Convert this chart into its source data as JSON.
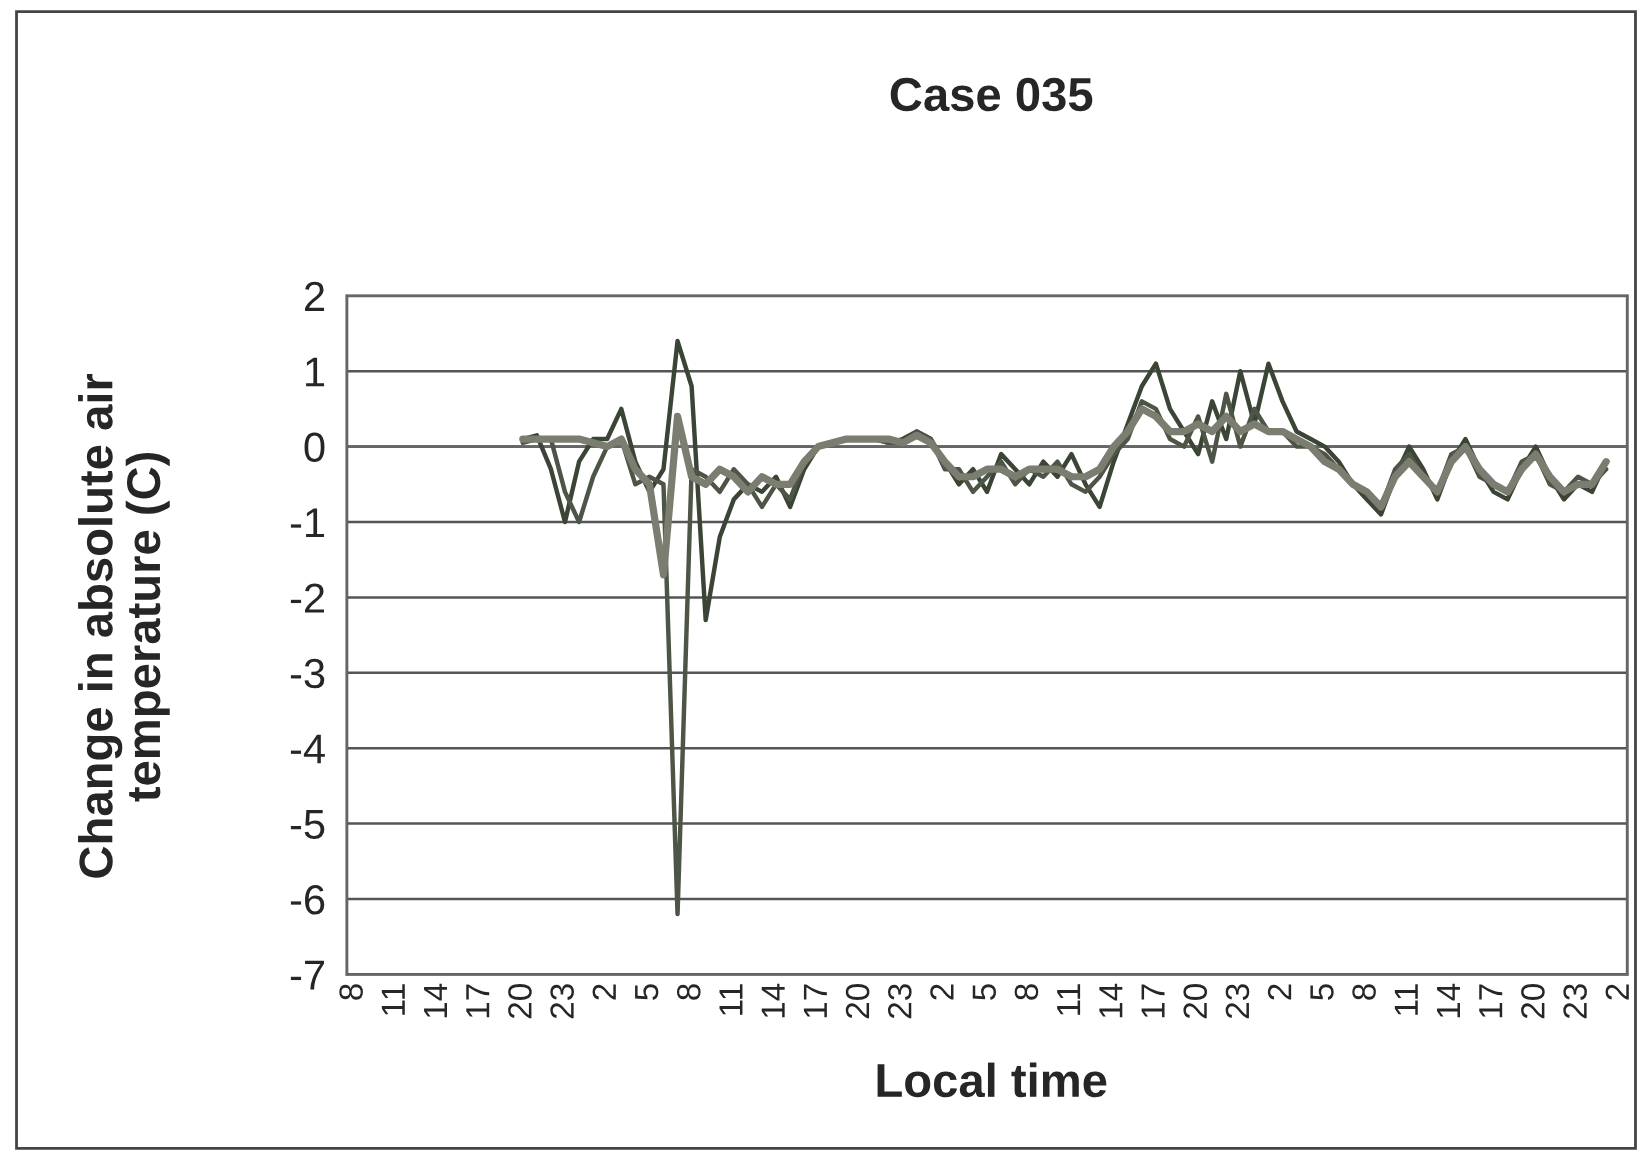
{
  "chart_data": {
    "type": "line",
    "title": "Case 035",
    "xlabel": "Local time",
    "ylabel": "Change in absolute air\ntemperature (C)",
    "categories": [
      "8",
      null,
      null,
      "11",
      null,
      null,
      "14",
      null,
      null,
      "17",
      null,
      null,
      "20",
      null,
      null,
      "23",
      null,
      null,
      "2",
      null,
      null,
      "5",
      null,
      null,
      "8",
      null,
      null,
      "11",
      null,
      null,
      "14",
      null,
      null,
      "17",
      null,
      null,
      "20",
      null,
      null,
      "23",
      null,
      null,
      "2",
      null,
      null,
      "5",
      null,
      null,
      "8",
      null,
      null,
      "11",
      null,
      null,
      "14",
      null,
      null,
      "17",
      null,
      null,
      "20",
      null,
      null,
      "23",
      null,
      null,
      "2",
      null,
      null,
      "5",
      null,
      null,
      "8",
      null,
      null,
      "11",
      null,
      null,
      "14",
      null,
      null,
      "17",
      null,
      null,
      "20",
      null,
      null,
      "23",
      null,
      null,
      "2"
    ],
    "series": [
      {
        "color": "#3a4536",
        "values": [
          null,
          null,
          null,
          null,
          null,
          null,
          null,
          null,
          null,
          null,
          null,
          null,
          0.1,
          0.15,
          -0.3,
          -1.0,
          -0.2,
          0.1,
          0.1,
          0.5,
          -0.2,
          -0.6,
          -0.3,
          1.4,
          0.8,
          -2.3,
          -1.2,
          -0.7,
          -0.5,
          -0.6,
          -0.4,
          -0.8,
          -0.3,
          0.0,
          0.05,
          0.1,
          0.1,
          0.1,
          0.05,
          0.1,
          0.2,
          0.1,
          -0.2,
          -0.5,
          -0.3,
          -0.6,
          -0.1,
          -0.3,
          -0.5,
          -0.2,
          -0.4,
          -0.1,
          -0.5,
          -0.8,
          -0.2,
          0.3,
          0.8,
          1.1,
          0.5,
          0.2,
          -0.1,
          0.6,
          0.1,
          1.0,
          0.3,
          1.1,
          0.6,
          0.2,
          0.1,
          0.0,
          -0.2,
          -0.5,
          -0.7,
          -0.9,
          -0.4,
          0.0,
          -0.3,
          -0.7,
          -0.2,
          0.1,
          -0.3,
          -0.6,
          -0.7,
          -0.3,
          0.0,
          -0.4,
          -0.7,
          -0.5,
          -0.6,
          -0.2,
          null
        ]
      },
      {
        "color": "#4d5547",
        "values": [
          null,
          null,
          null,
          null,
          null,
          null,
          null,
          null,
          null,
          null,
          null,
          null,
          0.05,
          0.1,
          0.1,
          -0.6,
          -1.0,
          -0.4,
          0.0,
          0.1,
          -0.5,
          -0.4,
          -0.5,
          -6.2,
          -0.3,
          -0.4,
          -0.6,
          -0.3,
          -0.5,
          -0.8,
          -0.5,
          -0.7,
          -0.2,
          0.0,
          0.05,
          0.1,
          0.1,
          0.1,
          0.05,
          0.05,
          0.2,
          0.1,
          -0.3,
          -0.3,
          -0.6,
          -0.4,
          -0.2,
          -0.5,
          -0.3,
          -0.4,
          -0.2,
          -0.5,
          -0.6,
          -0.4,
          -0.1,
          0.1,
          0.6,
          0.5,
          0.1,
          0.0,
          0.4,
          -0.2,
          0.7,
          0.0,
          0.5,
          0.2,
          0.2,
          0.0,
          0.0,
          -0.1,
          -0.3,
          -0.5,
          -0.6,
          -0.8,
          -0.3,
          -0.1,
          -0.4,
          -0.6,
          -0.1,
          0.0,
          -0.4,
          -0.5,
          -0.6,
          -0.2,
          -0.1,
          -0.5,
          -0.6,
          -0.4,
          -0.5,
          -0.3,
          null
        ]
      },
      {
        "color": "#7a7d70",
        "values": [
          null,
          null,
          null,
          null,
          null,
          null,
          null,
          null,
          null,
          null,
          null,
          null,
          0.1,
          0.1,
          0.1,
          0.1,
          0.1,
          0.05,
          0.0,
          0.1,
          -0.3,
          -0.5,
          -1.7,
          0.4,
          -0.4,
          -0.5,
          -0.3,
          -0.4,
          -0.6,
          -0.4,
          -0.5,
          -0.5,
          -0.2,
          0.0,
          0.05,
          0.1,
          0.1,
          0.1,
          0.1,
          0.05,
          0.15,
          0.05,
          -0.2,
          -0.4,
          -0.4,
          -0.3,
          -0.3,
          -0.4,
          -0.3,
          -0.3,
          -0.3,
          -0.4,
          -0.4,
          -0.3,
          0.0,
          0.2,
          0.5,
          0.4,
          0.2,
          0.2,
          0.3,
          0.2,
          0.4,
          0.2,
          0.3,
          0.2,
          0.2,
          0.1,
          0.0,
          -0.2,
          -0.3,
          -0.5,
          -0.6,
          -0.8,
          -0.4,
          -0.2,
          -0.4,
          -0.6,
          -0.2,
          0.0,
          -0.3,
          -0.5,
          -0.6,
          -0.3,
          -0.1,
          -0.4,
          -0.6,
          -0.5,
          -0.5,
          -0.2,
          null
        ]
      }
    ],
    "ylim": [
      -7,
      2
    ],
    "yticks": [
      -7,
      -6,
      -5,
      -4,
      -3,
      -2,
      -1,
      0,
      1,
      2
    ],
    "grid": "y",
    "legend": false,
    "marker": "none",
    "line_style": "solid"
  }
}
